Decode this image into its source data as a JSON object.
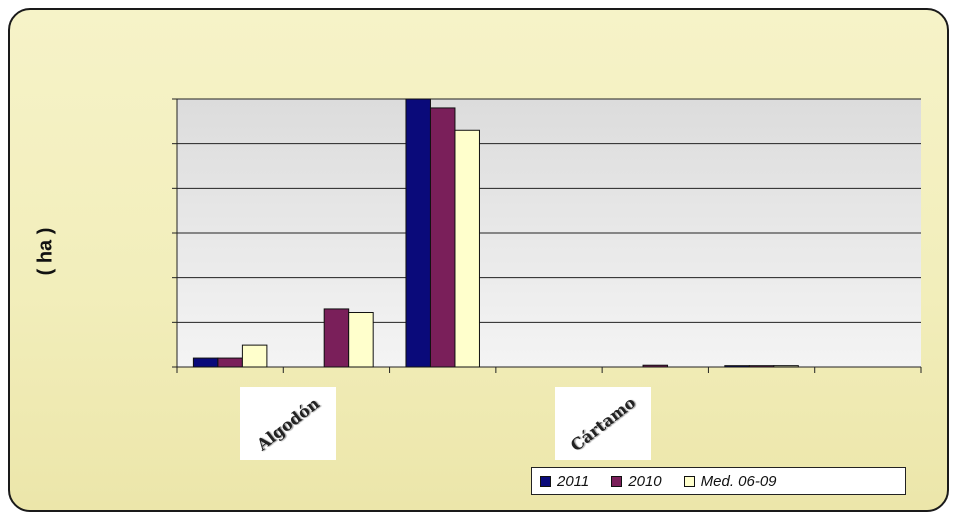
{
  "chart_data": {
    "type": "bar",
    "ylabel": "( ha )",
    "ylim": [
      0,
      6
    ],
    "grid": true,
    "legend_position": "bottom-right",
    "categories": [
      "Algodón",
      "",
      "",
      "Cártamo",
      "",
      "",
      ""
    ],
    "series": [
      {
        "name": "2011",
        "color": "#0a0a7a",
        "values": [
          0.2,
          0.0,
          6.0,
          0.0,
          0.0,
          0.03,
          0.0
        ]
      },
      {
        "name": "2010",
        "color": "#7a1f5a",
        "values": [
          0.2,
          1.3,
          5.8,
          0.0,
          0.04,
          0.03,
          0.0
        ]
      },
      {
        "name": "Med. 06-09",
        "color": "#ffffcc",
        "values": [
          0.49,
          1.22,
          5.3,
          0.0,
          0.0,
          0.03,
          0.0
        ]
      }
    ]
  }
}
